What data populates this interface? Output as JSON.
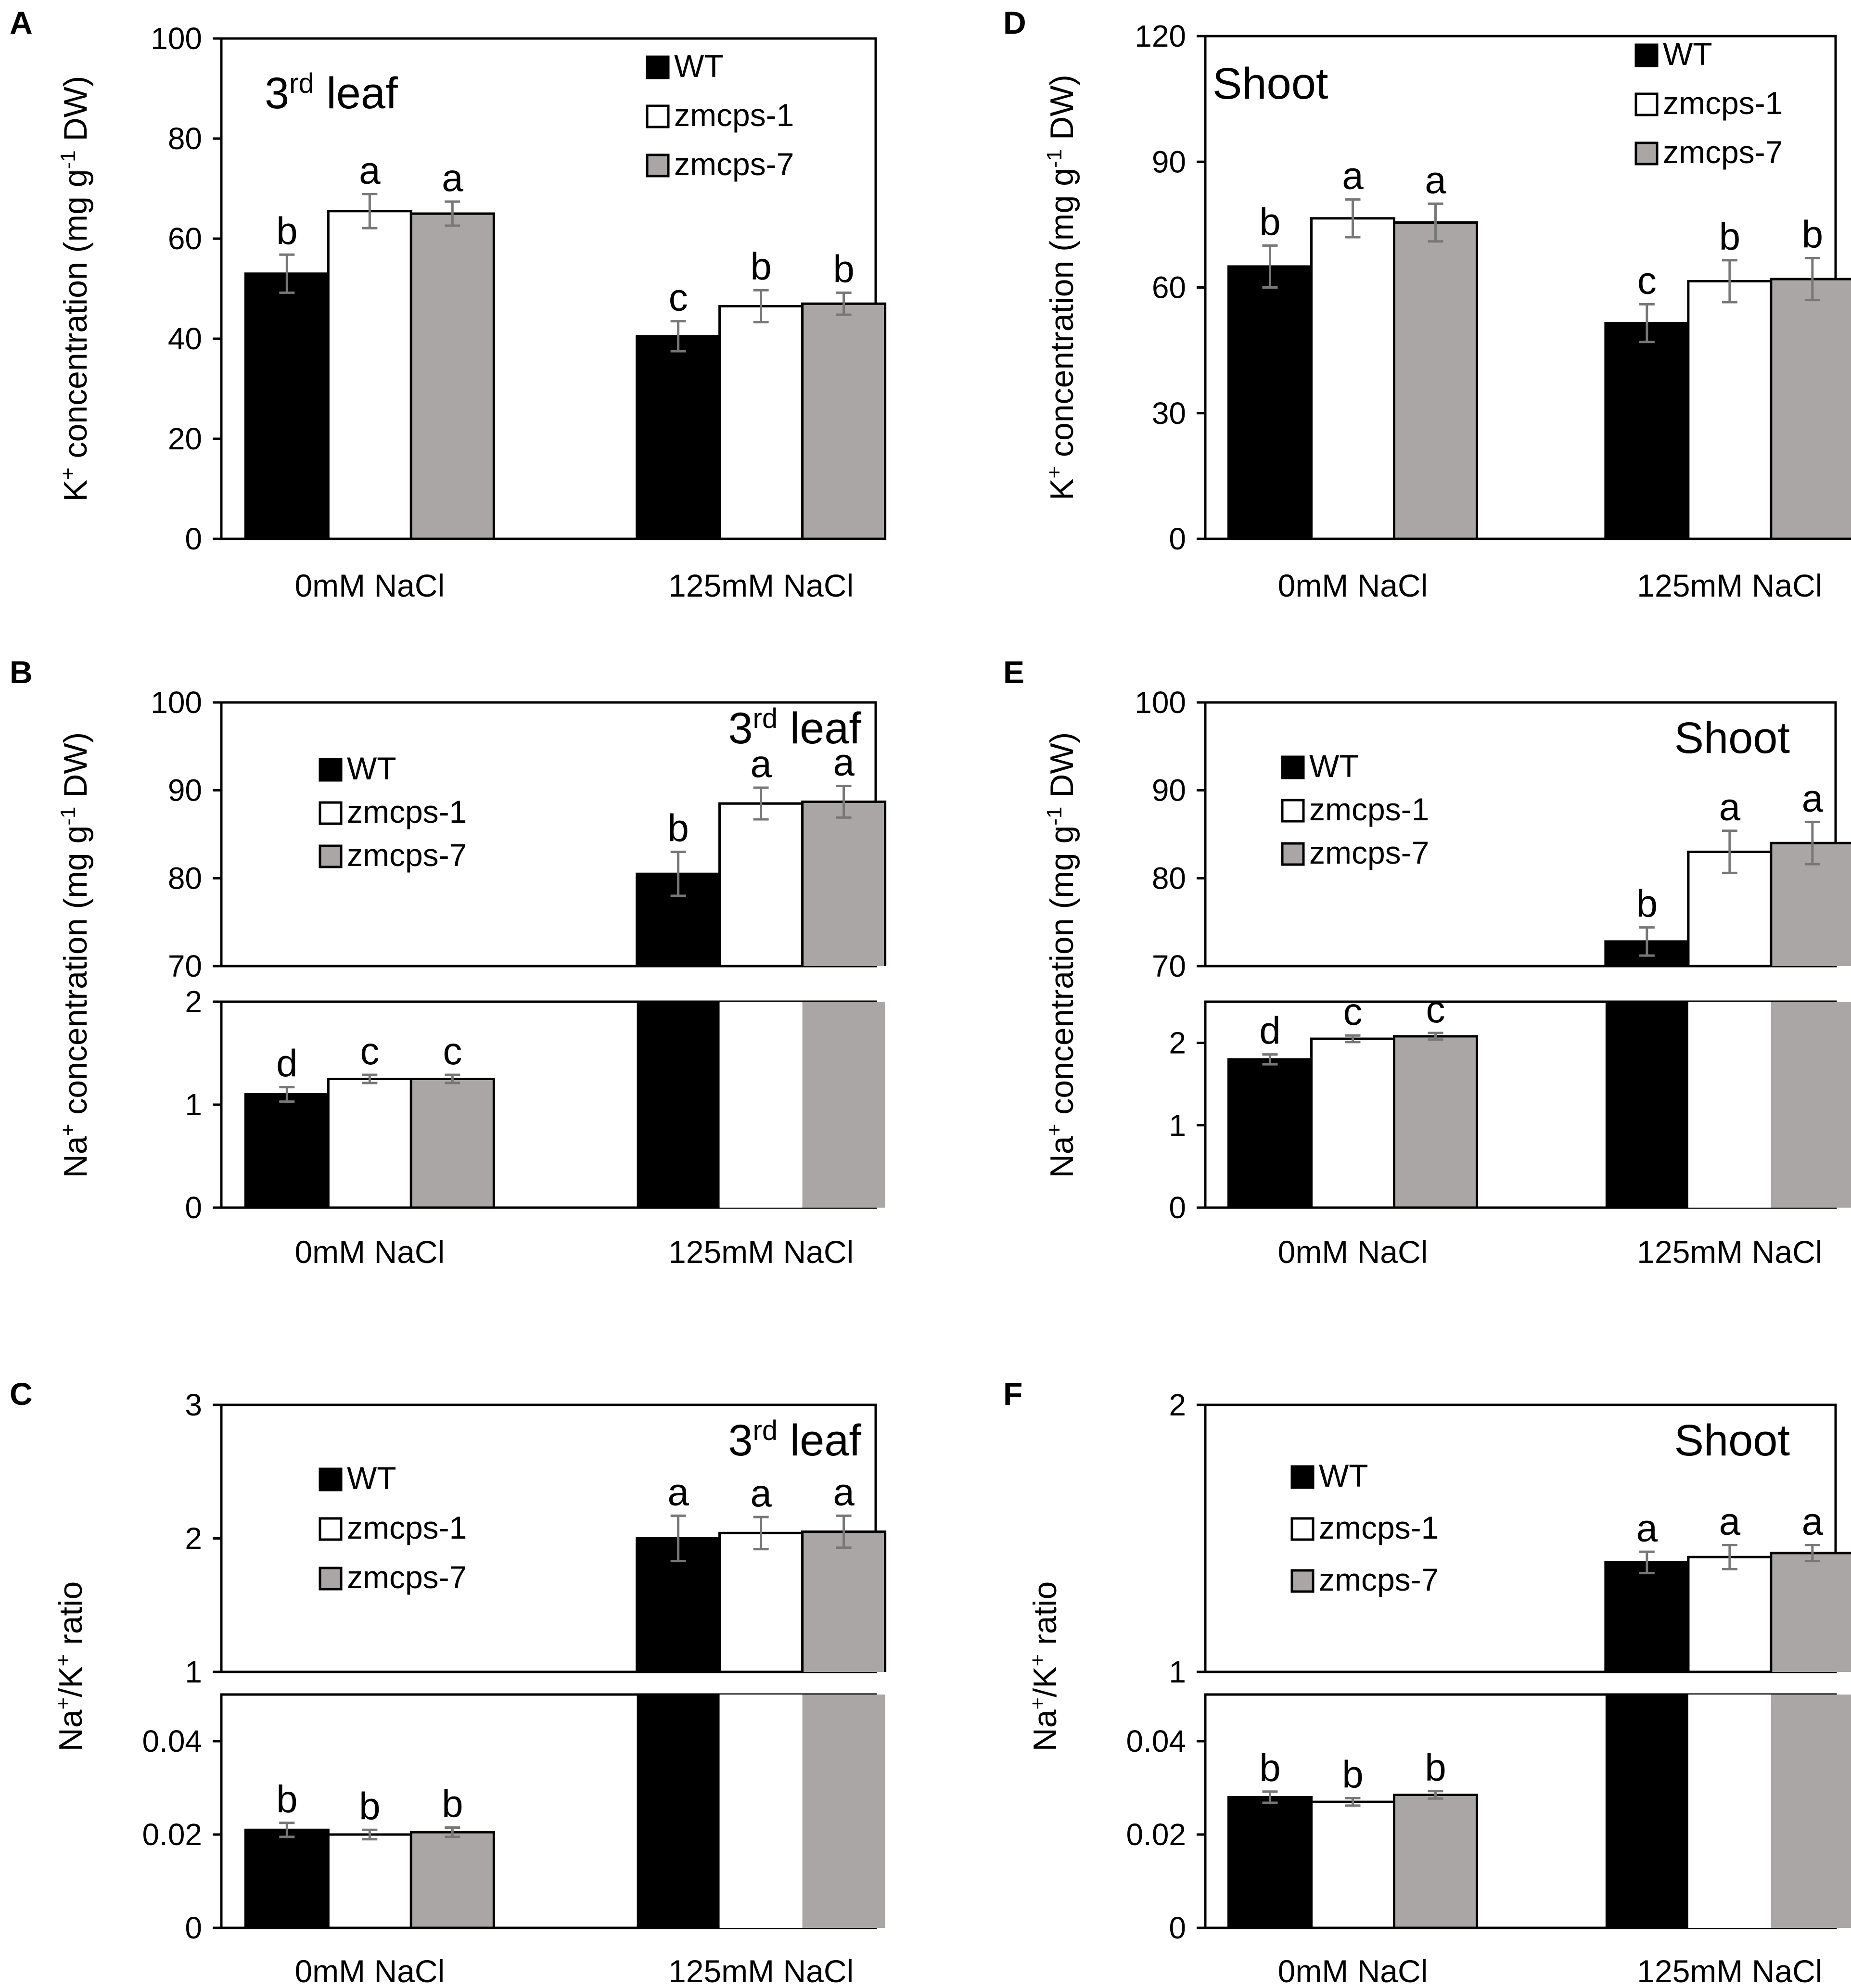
{
  "figure": {
    "series_names": [
      "WT",
      "zmcps-1",
      "zmcps-7"
    ],
    "colors": {
      "WT": "#000000",
      "zmcps-1": "#ffffff",
      "zmcps-7": "#aaa6a6",
      "axis": "#000000",
      "errorbar": "#777777"
    }
  },
  "chart_data": [
    {
      "id": "A",
      "type": "bar",
      "panel_label": "A",
      "title": "3",
      "title_sup": "rd",
      "title_rest": " leaf",
      "ylabel": "K+ concentration (mg g-1 DW)",
      "ylabel_parts": [
        "K",
        "+",
        " concentration (mg g",
        "-1",
        " DW)"
      ],
      "categories": [
        "0mM NaCl",
        "125mM NaCl"
      ],
      "ylim": [
        0,
        100
      ],
      "yticks": [
        "0",
        "20",
        "40",
        "60",
        "80",
        "100"
      ],
      "ytick_values": [
        0,
        20,
        40,
        60,
        80,
        100
      ],
      "series": [
        {
          "name": "WT",
          "values": [
            53,
            40.5
          ],
          "errors": [
            3.8,
            3
          ],
          "letters": [
            "b",
            "c"
          ]
        },
        {
          "name": "zmcps-1",
          "values": [
            65.5,
            46.5
          ],
          "errors": [
            3.4,
            3.2
          ],
          "letters": [
            "a",
            "b"
          ]
        },
        {
          "name": "zmcps-7",
          "values": [
            65,
            47
          ],
          "errors": [
            2.4,
            2.2
          ],
          "letters": [
            "a",
            "b"
          ]
        }
      ]
    },
    {
      "id": "B",
      "type": "bar",
      "panel_label": "B",
      "title": "3",
      "title_sup": "rd",
      "title_rest": " leaf",
      "ylabel": "Na+ concentration (mg g-1 DW)",
      "ylabel_parts": [
        "Na",
        "+",
        " concentration (mg g",
        "-1",
        " DW)"
      ],
      "categories": [
        "0mM NaCl",
        "125mM NaCl"
      ],
      "broken_axis": {
        "lower": [
          0,
          2
        ],
        "upper": [
          70,
          100
        ]
      },
      "yticks_lower": [
        "0",
        "1",
        "2"
      ],
      "ytick_values_lower": [
        0,
        1,
        2
      ],
      "yticks_upper": [
        "70",
        "80",
        "90",
        "100"
      ],
      "ytick_values_upper": [
        70,
        80,
        90,
        100
      ],
      "series": [
        {
          "name": "WT",
          "values": [
            1.1,
            80.5
          ],
          "errors": [
            0.07,
            2.5
          ],
          "letters": [
            "d",
            "b"
          ]
        },
        {
          "name": "zmcps-1",
          "values": [
            1.25,
            88.5
          ],
          "errors": [
            0.04,
            1.8
          ],
          "letters": [
            "c",
            "a"
          ]
        },
        {
          "name": "zmcps-7",
          "values": [
            1.25,
            88.7
          ],
          "errors": [
            0.04,
            1.8
          ],
          "letters": [
            "c",
            "a"
          ]
        }
      ]
    },
    {
      "id": "C",
      "type": "bar",
      "panel_label": "C",
      "title": "3",
      "title_sup": "rd",
      "title_rest": " leaf",
      "ylabel": "Na+/K+ ratio",
      "ylabel_parts": [
        "Na",
        "+",
        "/K",
        "+",
        " ratio"
      ],
      "categories": [
        "0mM NaCl",
        "125mM NaCl"
      ],
      "broken_axis": {
        "lower": [
          0,
          0.05
        ],
        "upper": [
          1,
          3
        ]
      },
      "yticks_lower": [
        "0",
        "0.02",
        "0.04"
      ],
      "ytick_values_lower": [
        0,
        0.02,
        0.04
      ],
      "yticks_upper": [
        "1",
        "2",
        "3"
      ],
      "ytick_values_upper": [
        1,
        2,
        3
      ],
      "series": [
        {
          "name": "WT",
          "values": [
            0.021,
            2.0
          ],
          "errors": [
            0.0015,
            0.17
          ],
          "letters": [
            "b",
            "a"
          ]
        },
        {
          "name": "zmcps-1",
          "values": [
            0.02,
            2.04
          ],
          "errors": [
            0.001,
            0.12
          ],
          "letters": [
            "b",
            "a"
          ]
        },
        {
          "name": "zmcps-7",
          "values": [
            0.0205,
            2.05
          ],
          "errors": [
            0.001,
            0.12
          ],
          "letters": [
            "b",
            "a"
          ]
        }
      ]
    },
    {
      "id": "D",
      "type": "bar",
      "panel_label": "D",
      "title": "Shoot",
      "title_sup": "",
      "title_rest": "",
      "ylabel": "K+ concentration (mg g-1 DW)",
      "ylabel_parts": [
        "K",
        "+",
        " concentration (mg g",
        "-1",
        " DW)"
      ],
      "categories": [
        "0mM NaCl",
        "125mM NaCl"
      ],
      "ylim": [
        0,
        120
      ],
      "yticks": [
        "0",
        "30",
        "60",
        "90",
        "120"
      ],
      "ytick_values": [
        0,
        30,
        60,
        90,
        120
      ],
      "series": [
        {
          "name": "WT",
          "values": [
            65,
            51.5
          ],
          "errors": [
            5,
            4.5
          ],
          "letters": [
            "b",
            "c"
          ]
        },
        {
          "name": "zmcps-1",
          "values": [
            76.5,
            61.5
          ],
          "errors": [
            4.5,
            5
          ],
          "letters": [
            "a",
            "b"
          ]
        },
        {
          "name": "zmcps-7",
          "values": [
            75.5,
            62
          ],
          "errors": [
            4.5,
            5
          ],
          "letters": [
            "a",
            "b"
          ]
        }
      ]
    },
    {
      "id": "E",
      "type": "bar",
      "panel_label": "E",
      "title": "Shoot",
      "title_sup": "",
      "title_rest": "",
      "ylabel": "Na+ concentration (mg g-1 DW)",
      "ylabel_parts": [
        "Na",
        "+",
        " concentration (mg g",
        "-1",
        " DW)"
      ],
      "categories": [
        "0mM NaCl",
        "125mM NaCl"
      ],
      "broken_axis": {
        "lower": [
          0,
          2.5
        ],
        "upper": [
          70,
          100
        ]
      },
      "yticks_lower": [
        "0",
        "1",
        "2"
      ],
      "ytick_values_lower": [
        0,
        1,
        2
      ],
      "yticks_upper": [
        "70",
        "80",
        "90",
        "100"
      ],
      "ytick_values_upper": [
        70,
        80,
        90,
        100
      ],
      "series": [
        {
          "name": "WT",
          "values": [
            1.8,
            72.8
          ],
          "errors": [
            0.06,
            1.6
          ],
          "letters": [
            "d",
            "b"
          ]
        },
        {
          "name": "zmcps-1",
          "values": [
            2.05,
            83
          ],
          "errors": [
            0.04,
            2.4
          ],
          "letters": [
            "c",
            "a"
          ]
        },
        {
          "name": "zmcps-7",
          "values": [
            2.08,
            84
          ],
          "errors": [
            0.04,
            2.4
          ],
          "letters": [
            "c",
            "a"
          ]
        }
      ]
    },
    {
      "id": "F",
      "type": "bar",
      "panel_label": "F",
      "title": "Shoot",
      "title_sup": "",
      "title_rest": "",
      "ylabel": "Na+/K+ ratio",
      "ylabel_parts": [
        "Na",
        "+",
        "/K",
        "+",
        " ratio"
      ],
      "categories": [
        "0mM NaCl",
        "125mM NaCl"
      ],
      "broken_axis": {
        "lower": [
          0,
          0.05
        ],
        "upper": [
          1,
          2
        ]
      },
      "yticks_lower": [
        "0",
        "0.02",
        "0.04"
      ],
      "ytick_values_lower": [
        0,
        0.02,
        0.04
      ],
      "yticks_upper": [
        "1",
        "2"
      ],
      "ytick_values_upper": [
        1,
        2
      ],
      "series": [
        {
          "name": "WT",
          "values": [
            0.028,
            1.41
          ],
          "errors": [
            0.0012,
            0.04
          ],
          "letters": [
            "b",
            "a"
          ]
        },
        {
          "name": "zmcps-1",
          "values": [
            0.027,
            1.43
          ],
          "errors": [
            0.0008,
            0.045
          ],
          "letters": [
            "b",
            "a"
          ]
        },
        {
          "name": "zmcps-7",
          "values": [
            0.0285,
            1.445
          ],
          "errors": [
            0.0008,
            0.03
          ],
          "letters": [
            "b",
            "a"
          ]
        }
      ]
    }
  ]
}
